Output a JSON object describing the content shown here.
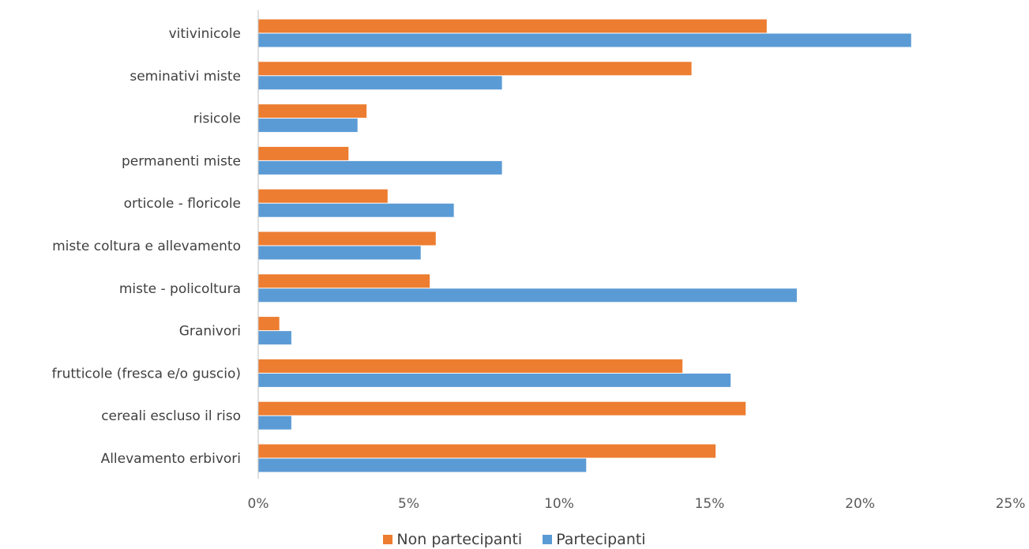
{
  "chart_data": {
    "type": "bar",
    "orientation": "horizontal",
    "categories": [
      "vitivinicole",
      "seminativi miste",
      "risicole",
      "permanenti miste",
      "orticole - floricole",
      "miste coltura e allevamento",
      "miste - policoltura",
      "Granivori",
      "frutticole (fresca e/o guscio)",
      "cereali escluso il riso",
      "Allevamento erbivori"
    ],
    "series": [
      {
        "name": "Non partecipanti",
        "color": "#ED7D31",
        "values": [
          16.9,
          14.4,
          3.6,
          3.0,
          4.3,
          5.9,
          5.7,
          0.7,
          14.1,
          16.2,
          15.2
        ]
      },
      {
        "name": "Partecipanti",
        "color": "#5B9BD5",
        "values": [
          21.7,
          8.1,
          3.3,
          8.1,
          6.5,
          5.4,
          17.9,
          1.1,
          15.7,
          1.1,
          10.9
        ]
      }
    ],
    "xticks": [
      "0%",
      "5%",
      "10%",
      "15%",
      "20%",
      "25%"
    ],
    "xlim": [
      0,
      25
    ],
    "xlabel": "",
    "ylabel": "",
    "title": "",
    "grid": false,
    "legend_position": "bottom"
  }
}
